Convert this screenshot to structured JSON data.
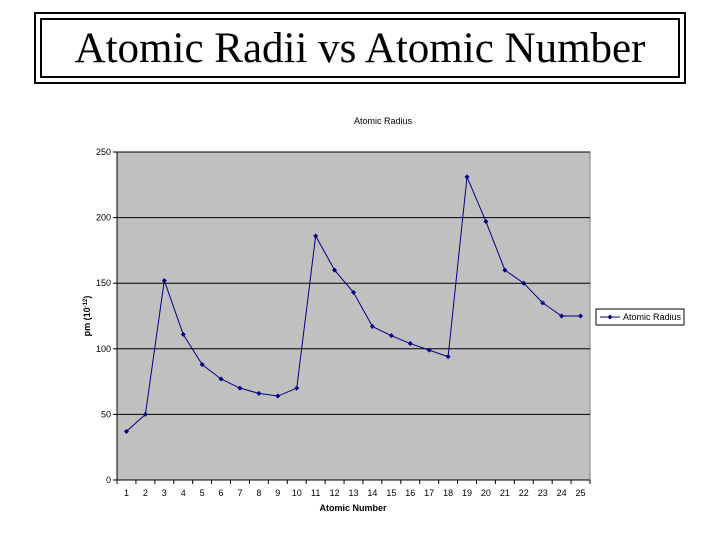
{
  "slide": {
    "title": "Atomic Radii vs Atomic Number"
  },
  "chart_data": {
    "type": "line",
    "title": "Atomic Radius",
    "xlabel": "Atomic Number",
    "ylabel": "pm (10^-12)",
    "ylabel_base": "pm (10",
    "ylabel_exp": "-12",
    "ylabel_close": ")",
    "categories": [
      "1",
      "2",
      "3",
      "4",
      "5",
      "6",
      "7",
      "8",
      "9",
      "10",
      "11",
      "12",
      "13",
      "14",
      "15",
      "16",
      "17",
      "18",
      "19",
      "20",
      "21",
      "22",
      "23",
      "24",
      "25"
    ],
    "ylim": [
      0,
      250
    ],
    "yticks": [
      0,
      50,
      100,
      150,
      200,
      250
    ],
    "grid": true,
    "legend_position": "right",
    "series": [
      {
        "name": "Atomic Radius",
        "color": "#000080",
        "values": [
          37,
          50,
          152,
          111,
          88,
          77,
          70,
          66,
          64,
          70,
          186,
          160,
          143,
          117,
          110,
          104,
          99,
          94,
          231,
          197,
          160,
          150,
          135,
          125,
          125
        ]
      }
    ],
    "plot_background": "#c0c0c0"
  }
}
